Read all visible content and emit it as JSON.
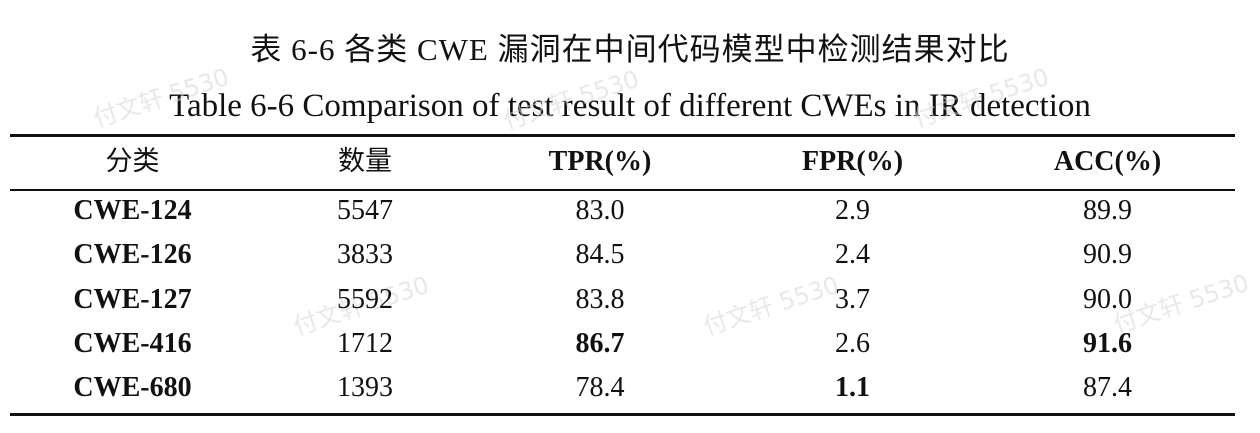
{
  "caption": {
    "chinese": "表 6-6 各类 CWE 漏洞在中间代码模型中检测结果对比",
    "english": "Table 6-6 Comparison of test result of different CWEs in IR detection"
  },
  "table": {
    "headers": [
      "分类",
      "数量",
      "TPR(%)",
      "FPR(%)",
      "ACC(%)"
    ],
    "rows": [
      [
        "CWE-124",
        "5547",
        "83.0",
        "2.9",
        "89.9"
      ],
      [
        "CWE-126",
        "3833",
        "84.5",
        "2.4",
        "90.9"
      ],
      [
        "CWE-127",
        "5592",
        "83.8",
        "3.7",
        "90.0"
      ],
      [
        "CWE-416",
        "1712",
        "86.7",
        "2.6",
        "91.6"
      ],
      [
        "CWE-680",
        "1393",
        "78.4",
        "1.1",
        "87.4"
      ]
    ]
  },
  "watermark": "付文轩 5530"
}
